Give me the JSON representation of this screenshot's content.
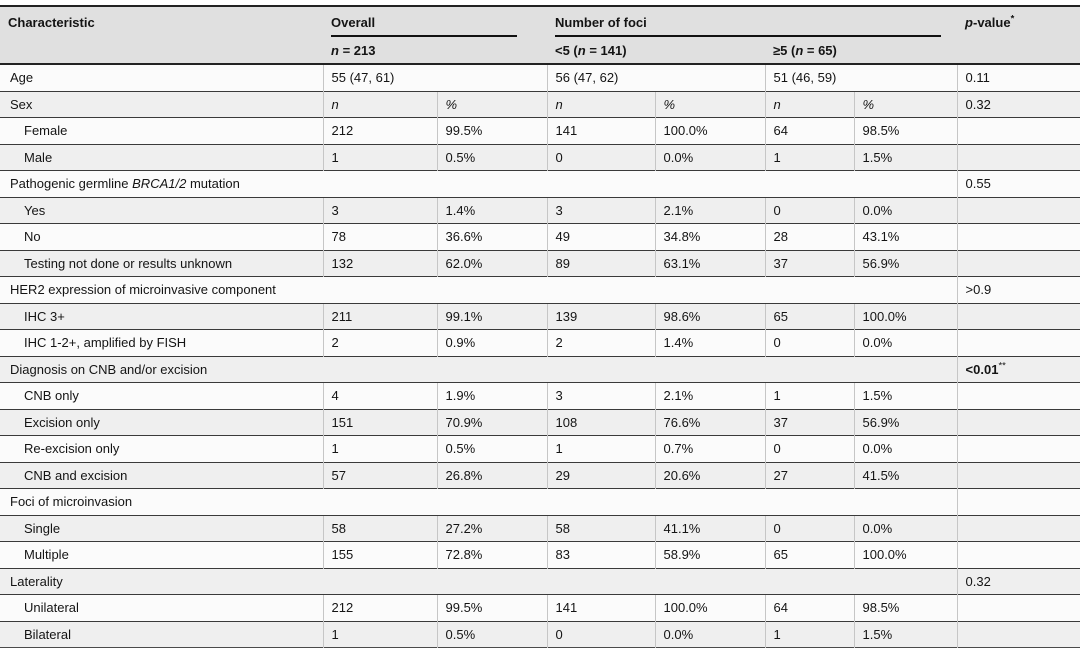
{
  "table": {
    "colors": {
      "header_bg": "#e0e0e0",
      "row_light": "#fbfbfb",
      "row_shaded": "#efefef",
      "row_rule": "#3a3a3a",
      "heavy_rule": "#222222",
      "column_divider": "#c6c6c6"
    },
    "header": {
      "characteristic": "Characteristic",
      "overall": "Overall",
      "overall_sub_parts": [
        {
          "text": "n",
          "italic": true
        },
        {
          "text": " = 213"
        }
      ],
      "number_of_foci": "Number of foci",
      "foci_lt5_parts": [
        {
          "text": "<5 ("
        },
        {
          "text": "n",
          "italic": true
        },
        {
          "text": " = 141)"
        }
      ],
      "foci_ge5_parts": [
        {
          "text": "≥5 ("
        },
        {
          "text": "n",
          "italic": true
        },
        {
          "text": " = 65)"
        }
      ],
      "pvalue_italic": "p",
      "pvalue_rest": "-value",
      "pvalue_sup": "*"
    },
    "rows": [
      {
        "type": "span2",
        "indent": false,
        "label_parts": [
          {
            "text": "Age"
          }
        ],
        "cells": [
          "55 (47, 61)",
          "56 (47, 62)",
          "51 (46, 59)"
        ],
        "p": "0.11"
      },
      {
        "type": "cols",
        "indent": false,
        "cells_italic": true,
        "label_parts": [
          {
            "text": "Sex"
          }
        ],
        "cells": [
          "n",
          "%",
          "n",
          "%",
          "n",
          "%"
        ],
        "p": "0.32"
      },
      {
        "type": "cols",
        "indent": true,
        "label_parts": [
          {
            "text": "Female"
          }
        ],
        "cells": [
          "212",
          "99.5%",
          "141",
          "100.0%",
          "64",
          "98.5%"
        ],
        "p": ""
      },
      {
        "type": "cols",
        "indent": true,
        "label_parts": [
          {
            "text": "Male"
          }
        ],
        "cells": [
          "1",
          "0.5%",
          "0",
          "0.0%",
          "1",
          "1.5%"
        ],
        "p": ""
      },
      {
        "type": "cat",
        "label_parts": [
          {
            "text": "Pathogenic germline "
          },
          {
            "text": "BRCA1/2",
            "italic": true
          },
          {
            "text": " mutation"
          }
        ],
        "p": "0.55"
      },
      {
        "type": "cols",
        "indent": true,
        "label_parts": [
          {
            "text": "Yes"
          }
        ],
        "cells": [
          "3",
          "1.4%",
          "3",
          "2.1%",
          "0",
          "0.0%"
        ],
        "p": ""
      },
      {
        "type": "cols",
        "indent": true,
        "label_parts": [
          {
            "text": "No"
          }
        ],
        "cells": [
          "78",
          "36.6%",
          "49",
          "34.8%",
          "28",
          "43.1%"
        ],
        "p": ""
      },
      {
        "type": "cols",
        "indent": true,
        "label_parts": [
          {
            "text": "Testing not done or results unknown"
          }
        ],
        "cells": [
          "132",
          "62.0%",
          "89",
          "63.1%",
          "37",
          "56.9%"
        ],
        "p": ""
      },
      {
        "type": "cat",
        "label_parts": [
          {
            "text": "HER2 expression of microinvasive component"
          }
        ],
        "p": ">0.9"
      },
      {
        "type": "cols",
        "indent": true,
        "label_parts": [
          {
            "text": "IHC 3+"
          }
        ],
        "cells": [
          "211",
          "99.1%",
          "139",
          "98.6%",
          "65",
          "100.0%"
        ],
        "p": ""
      },
      {
        "type": "cols",
        "indent": true,
        "label_parts": [
          {
            "text": "IHC 1-2+, amplified by FISH"
          }
        ],
        "cells": [
          "2",
          "0.9%",
          "2",
          "1.4%",
          "0",
          "0.0%"
        ],
        "p": ""
      },
      {
        "type": "cat",
        "label_parts": [
          {
            "text": "Diagnosis on CNB and/or excision"
          }
        ],
        "p": "<0.01",
        "p_sup": "**",
        "p_strong": true
      },
      {
        "type": "cols",
        "indent": true,
        "label_parts": [
          {
            "text": "CNB only"
          }
        ],
        "cells": [
          "4",
          "1.9%",
          "3",
          "2.1%",
          "1",
          "1.5%"
        ],
        "p": ""
      },
      {
        "type": "cols",
        "indent": true,
        "label_parts": [
          {
            "text": "Excision only"
          }
        ],
        "cells": [
          "151",
          "70.9%",
          "108",
          "76.6%",
          "37",
          "56.9%"
        ],
        "p": ""
      },
      {
        "type": "cols",
        "indent": true,
        "label_parts": [
          {
            "text": "Re-excision only"
          }
        ],
        "cells": [
          "1",
          "0.5%",
          "1",
          "0.7%",
          "0",
          "0.0%"
        ],
        "p": ""
      },
      {
        "type": "cols",
        "indent": true,
        "label_parts": [
          {
            "text": "CNB and excision"
          }
        ],
        "cells": [
          "57",
          "26.8%",
          "29",
          "20.6%",
          "27",
          "41.5%"
        ],
        "p": ""
      },
      {
        "type": "cat",
        "label_parts": [
          {
            "text": "Foci of microinvasion"
          }
        ],
        "p": ""
      },
      {
        "type": "cols",
        "indent": true,
        "label_parts": [
          {
            "text": "Single"
          }
        ],
        "cells": [
          "58",
          "27.2%",
          "58",
          "41.1%",
          "0",
          "0.0%"
        ],
        "p": ""
      },
      {
        "type": "cols",
        "indent": true,
        "label_parts": [
          {
            "text": "Multiple"
          }
        ],
        "cells": [
          "155",
          "72.8%",
          "83",
          "58.9%",
          "65",
          "100.0%"
        ],
        "p": ""
      },
      {
        "type": "cat",
        "label_parts": [
          {
            "text": "Laterality"
          }
        ],
        "p": "0.32"
      },
      {
        "type": "cols",
        "indent": true,
        "label_parts": [
          {
            "text": "Unilateral"
          }
        ],
        "cells": [
          "212",
          "99.5%",
          "141",
          "100.0%",
          "64",
          "98.5%"
        ],
        "p": ""
      },
      {
        "type": "cols",
        "indent": true,
        "label_parts": [
          {
            "text": "Bilateral"
          }
        ],
        "cells": [
          "1",
          "0.5%",
          "0",
          "0.0%",
          "1",
          "1.5%"
        ],
        "p": ""
      }
    ]
  }
}
